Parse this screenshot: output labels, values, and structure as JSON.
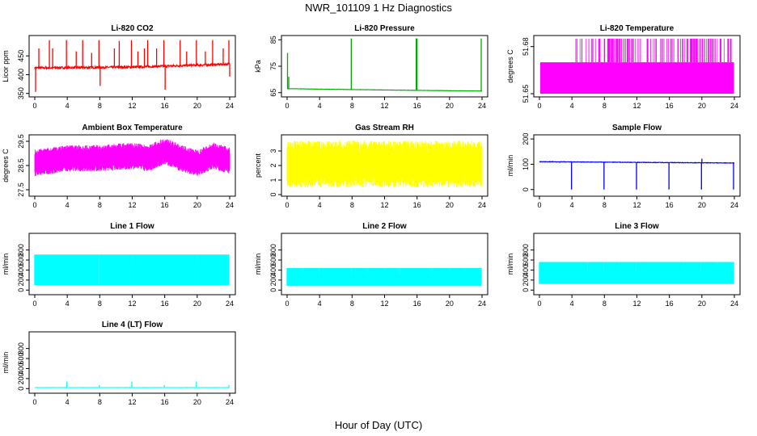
{
  "figure": {
    "title": "NWR_101109  1 Hz Diagnostics",
    "xlabel": "Hour of Day (UTC)"
  },
  "chart_data": [
    {
      "type": "line",
      "title": "Li-820 CO2",
      "ylabel": "Licor ppm",
      "color": "#ff0000",
      "xlim": [
        0,
        24
      ],
      "x_ticks": [
        0,
        4,
        8,
        12,
        16,
        20,
        24
      ],
      "ylim": [
        345,
        500
      ],
      "y_ticks": [
        350,
        400,
        450
      ],
      "baseline": 420,
      "noise": 6,
      "trend": [
        [
          0,
          418
        ],
        [
          12,
          420
        ],
        [
          24,
          428
        ]
      ],
      "spikes": [
        [
          0.1,
          354
        ],
        [
          0.5,
          470
        ],
        [
          1.8,
          492
        ],
        [
          2.2,
          470
        ],
        [
          3.9,
          492
        ],
        [
          5.1,
          462
        ],
        [
          5.9,
          492
        ],
        [
          7.0,
          458
        ],
        [
          7.9,
          492
        ],
        [
          8.05,
          370
        ],
        [
          9.8,
          470
        ],
        [
          10.4,
          490
        ],
        [
          11.9,
          492
        ],
        [
          12.7,
          462
        ],
        [
          13.5,
          470
        ],
        [
          13.9,
          492
        ],
        [
          15.0,
          470
        ],
        [
          15.9,
          492
        ],
        [
          16.05,
          360
        ],
        [
          17.9,
          492
        ],
        [
          18.7,
          462
        ],
        [
          19.9,
          492
        ],
        [
          21.0,
          462
        ],
        [
          21.9,
          492
        ],
        [
          23.2,
          470
        ],
        [
          23.9,
          492
        ],
        [
          24.0,
          395
        ]
      ]
    },
    {
      "type": "line",
      "title": "Li-820 Pressure",
      "ylabel": "kPa",
      "color": "#00aa00",
      "xlim": [
        0,
        24
      ],
      "x_ticks": [
        0,
        4,
        8,
        12,
        16,
        20,
        24
      ],
      "ylim": [
        64,
        86
      ],
      "y_ticks": [
        65,
        75,
        85
      ],
      "baseline": 66.3,
      "noise": 0.1,
      "trend": [
        [
          0,
          66.5
        ],
        [
          12,
          66.0
        ],
        [
          24,
          65.6
        ]
      ],
      "spikes": [
        [
          0.05,
          80
        ],
        [
          0.2,
          71
        ],
        [
          7.9,
          85.5
        ],
        [
          15.9,
          85.5
        ],
        [
          16.0,
          85.5
        ],
        [
          23.9,
          85.5
        ]
      ]
    },
    {
      "type": "area",
      "title": "Li-820 Temperature",
      "ylabel": "degrees C",
      "color": "#ff00ff",
      "xlim": [
        0,
        24
      ],
      "x_ticks": [
        0,
        4,
        8,
        12,
        16,
        20,
        24
      ],
      "ylim": [
        51.649,
        51.686
      ],
      "y_ticks": [
        51.65,
        51.68
      ],
      "y_tick_labels": [
        "51.65",
        "51.68"
      ],
      "band": [
        51.65,
        51.67
      ],
      "upper_spikes_to": 51.685
    },
    {
      "type": "area",
      "title": "Ambient Box Temperature",
      "ylabel": "degrees C",
      "color": "#ff00ff",
      "xlim": [
        0,
        24
      ],
      "x_ticks": [
        0,
        4,
        8,
        12,
        16,
        20,
        24
      ],
      "ylim": [
        27.3,
        29.7
      ],
      "y_ticks": [
        27.5,
        28.5,
        29.5
      ],
      "center_curve": [
        [
          0,
          28.6
        ],
        [
          4,
          28.8
        ],
        [
          8,
          28.8
        ],
        [
          12,
          28.9
        ],
        [
          14,
          28.8
        ],
        [
          16,
          29.1
        ],
        [
          18,
          28.8
        ],
        [
          20,
          28.6
        ],
        [
          22,
          28.9
        ],
        [
          24,
          28.7
        ]
      ],
      "half_width": 0.55
    },
    {
      "type": "area",
      "title": "Gas Stream RH",
      "ylabel": "percent",
      "color": "#ffff00",
      "xlim": [
        0,
        24
      ],
      "x_ticks": [
        0,
        4,
        8,
        12,
        16,
        20,
        24
      ],
      "ylim": [
        0,
        4
      ],
      "y_ticks": [
        0,
        1,
        2,
        3
      ],
      "center_curve": [
        [
          0,
          2.1
        ],
        [
          24,
          2.1
        ]
      ],
      "half_width": 1.6
    },
    {
      "type": "line",
      "title": "Sample Flow",
      "ylabel": "ml/min",
      "color": "#0000ff",
      "xlim": [
        0,
        24
      ],
      "x_ticks": [
        0,
        4,
        8,
        12,
        16,
        20,
        24
      ],
      "ylim": [
        -20,
        210
      ],
      "y_ticks": [
        0,
        100,
        200
      ],
      "baseline": 105,
      "noise": 2,
      "trend": [
        [
          0,
          110
        ],
        [
          24,
          105
        ]
      ],
      "spikes": [
        [
          3.95,
          0
        ],
        [
          7.95,
          0
        ],
        [
          11.95,
          0
        ],
        [
          15.95,
          0
        ],
        [
          19.95,
          0
        ],
        [
          23.9,
          0
        ],
        [
          20.0,
          122
        ]
      ]
    },
    {
      "type": "area",
      "title": "Line 1 Flow",
      "ylabel": "ml/min",
      "color": "#00ffff",
      "xlim": [
        0,
        24
      ],
      "x_ticks": [
        0,
        4,
        8,
        12,
        16,
        20,
        24
      ],
      "ylim": [
        -60,
        1100
      ],
      "y_ticks": [
        0,
        200,
        400,
        600,
        800
      ],
      "band": [
        100,
        710
      ],
      "gaps": [
        3.9,
        7.95,
        12.0,
        15.9,
        19.95,
        23.8
      ],
      "gap_width": 0.12
    },
    {
      "type": "area",
      "title": "Line 2 Flow",
      "ylabel": "ml/min",
      "color": "#00ffff",
      "xlim": [
        0,
        24
      ],
      "x_ticks": [
        0,
        4,
        8,
        12,
        16,
        20,
        24
      ],
      "ylim": [
        -60,
        1100
      ],
      "y_ticks": [
        0,
        200,
        400,
        600,
        800
      ],
      "band": [
        80,
        440
      ],
      "dips": [
        1.95,
        3.95,
        7.95,
        9.9,
        12.0,
        13.85,
        15.9,
        17.9,
        19.95,
        21.9,
        23.8
      ],
      "dip_to": 320,
      "gap_width": 0.1
    },
    {
      "type": "area",
      "title": "Line 3 Flow",
      "ylabel": "ml/min",
      "color": "#00ffff",
      "xlim": [
        0,
        24
      ],
      "x_ticks": [
        0,
        4,
        8,
        12,
        16,
        20,
        24
      ],
      "ylim": [
        -60,
        1100
      ],
      "y_ticks": [
        0,
        200,
        400,
        600,
        800
      ],
      "band": [
        120,
        560
      ],
      "dips": [
        1.2,
        3.9,
        5.9,
        7.9,
        9.8,
        11.9,
        13.5,
        15.9,
        17.8,
        19.9,
        21.8,
        23.8
      ],
      "dip_to": 380,
      "gap_width": 0.1
    },
    {
      "type": "line",
      "title": "Line 4 (LT) Flow",
      "ylabel": "ml/min",
      "color": "#00ffff",
      "xlim": [
        0,
        24
      ],
      "x_ticks": [
        0,
        4,
        8,
        12,
        16,
        20,
        24
      ],
      "ylim": [
        -60,
        1100
      ],
      "y_ticks": [
        0,
        200,
        400,
        600,
        800
      ],
      "baseline": 20,
      "noise": 4,
      "trend": [
        [
          0,
          20
        ],
        [
          24,
          20
        ]
      ],
      "spikes": [
        [
          3.95,
          140
        ],
        [
          7.95,
          70
        ],
        [
          11.95,
          140
        ],
        [
          15.95,
          70
        ],
        [
          19.9,
          140
        ],
        [
          23.9,
          70
        ]
      ]
    }
  ]
}
